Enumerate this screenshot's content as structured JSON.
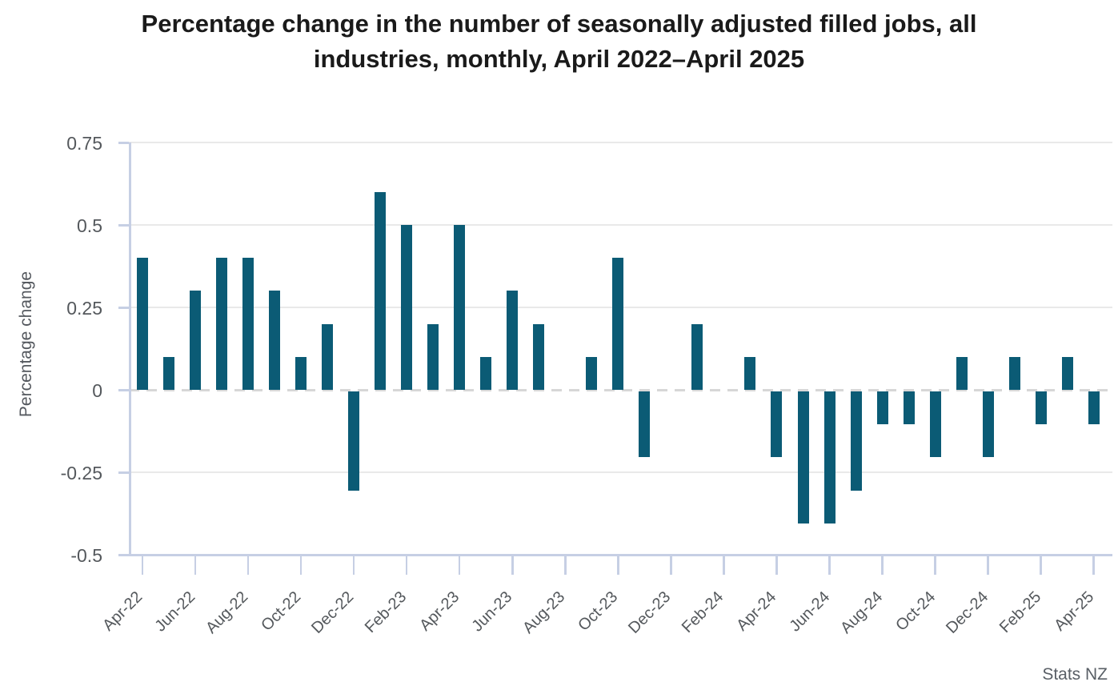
{
  "title": {
    "text": "Percentage change in the number of seasonally adjusted filled jobs, all industries, monthly, April 2022–April 2025",
    "lines": [
      "Percentage change in the number of seasonally adjusted filled jobs, all",
      "industries, monthly, April 2022–April 2025"
    ]
  },
  "footer": {
    "source_label": "Stats NZ"
  },
  "colors": {
    "bar": "#0b5b75",
    "gridline": "#e9e9e9",
    "zero_line": "#d7d7d7",
    "axis": "#c6cfe4",
    "tick_label": "#54585c",
    "title_text": "#1a1a1a"
  },
  "chart_data": {
    "type": "bar",
    "title": "Percentage change in the number of seasonally adjusted filled jobs, all industries, monthly, April 2022–April 2025",
    "xlabel": "",
    "ylabel": "Percentage change",
    "categories": [
      "Apr-22",
      "May-22",
      "Jun-22",
      "Jul-22",
      "Aug-22",
      "Sep-22",
      "Oct-22",
      "Nov-22",
      "Dec-22",
      "Jan-23",
      "Feb-23",
      "Mar-23",
      "Apr-23",
      "May-23",
      "Jun-23",
      "Jul-23",
      "Aug-23",
      "Sep-23",
      "Oct-23",
      "Nov-23",
      "Dec-23",
      "Jan-24",
      "Feb-24",
      "Mar-24",
      "Apr-24",
      "May-24",
      "Jun-24",
      "Jul-24",
      "Aug-24",
      "Sep-24",
      "Oct-24",
      "Nov-24",
      "Dec-24",
      "Jan-25",
      "Feb-25",
      "Mar-25",
      "Apr-25"
    ],
    "values": [
      0.4,
      0.1,
      0.3,
      0.4,
      0.4,
      0.3,
      0.1,
      0.2,
      -0.3,
      0.6,
      0.5,
      0.2,
      0.5,
      0.1,
      0.3,
      0.2,
      0.0,
      0.1,
      0.4,
      -0.2,
      0.0,
      0.2,
      0.0,
      0.1,
      -0.2,
      -0.4,
      -0.4,
      -0.3,
      -0.1,
      -0.1,
      -0.2,
      0.1,
      -0.2,
      0.1,
      -0.1,
      0.1,
      -0.1
    ],
    "x_tick_labels": [
      "Apr-22",
      "Jun-22",
      "Aug-22",
      "Oct-22",
      "Dec-22",
      "Feb-23",
      "Apr-23",
      "Jun-23",
      "Aug-23",
      "Oct-23",
      "Dec-23",
      "Feb-24",
      "Apr-24",
      "Jun-24",
      "Aug-24",
      "Oct-24",
      "Dec-24",
      "Feb-25",
      "Apr-25"
    ],
    "y_ticks": [
      0.75,
      0.5,
      0.25,
      0,
      -0.25,
      -0.5
    ],
    "y_tick_labels": [
      "0.75",
      "0.5",
      "0.25",
      "0",
      "-0.25",
      "-0.5"
    ],
    "ylim": [
      -0.5,
      0.75
    ],
    "grid": "horizontal",
    "zero_line_style": "dashed",
    "legend": "none",
    "source": "Stats NZ"
  }
}
